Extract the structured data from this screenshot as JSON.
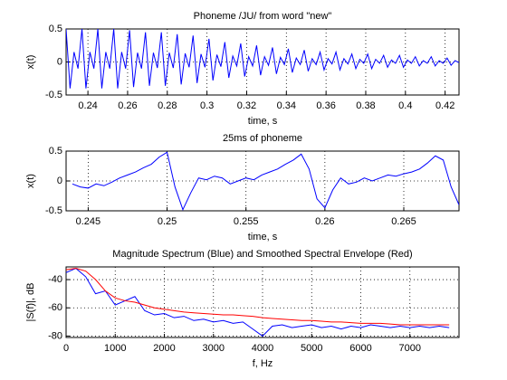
{
  "chart_data": [
    {
      "type": "line",
      "title": "Phoneme /JU/ from word \"new\"",
      "xlabel": "time, s",
      "ylabel": "x(t)",
      "x": [
        0.229,
        0.231,
        0.233,
        0.235,
        0.237,
        0.239,
        0.241,
        0.243,
        0.245,
        0.247,
        0.249,
        0.251,
        0.253,
        0.255,
        0.257,
        0.259,
        0.261,
        0.263,
        0.265,
        0.267,
        0.269,
        0.271,
        0.273,
        0.275,
        0.277,
        0.279,
        0.281,
        0.283,
        0.285,
        0.287,
        0.289,
        0.291,
        0.293,
        0.295,
        0.297,
        0.299,
        0.301,
        0.303,
        0.305,
        0.307,
        0.309,
        0.311,
        0.313,
        0.315,
        0.317,
        0.319,
        0.321,
        0.323,
        0.325,
        0.327,
        0.329,
        0.331,
        0.333,
        0.335,
        0.337,
        0.339,
        0.341,
        0.343,
        0.345,
        0.347,
        0.349,
        0.351,
        0.353,
        0.355,
        0.357,
        0.359,
        0.361,
        0.363,
        0.365,
        0.367,
        0.369,
        0.371,
        0.373,
        0.375,
        0.377,
        0.379,
        0.381,
        0.383,
        0.385,
        0.387,
        0.389,
        0.391,
        0.393,
        0.395,
        0.397,
        0.399,
        0.401,
        0.403,
        0.405,
        0.407,
        0.409,
        0.411,
        0.413,
        0.415,
        0.417,
        0.419,
        0.421,
        0.423,
        0.425,
        0.427
      ],
      "series": [
        {
          "color": "#0000ff",
          "values": [
            0.5,
            -0.4,
            0.15,
            -0.1,
            0.5,
            -0.4,
            0.15,
            -0.1,
            0.5,
            -0.4,
            0.15,
            -0.1,
            0.5,
            -0.4,
            0.15,
            -0.1,
            0.48,
            -0.38,
            0.14,
            -0.1,
            0.45,
            -0.36,
            0.14,
            -0.09,
            0.45,
            -0.36,
            0.14,
            -0.09,
            0.42,
            -0.34,
            0.13,
            -0.08,
            0.4,
            -0.32,
            0.12,
            -0.08,
            0.35,
            -0.28,
            0.11,
            -0.07,
            0.3,
            -0.24,
            0.09,
            -0.06,
            0.28,
            -0.22,
            0.08,
            -0.06,
            0.25,
            -0.2,
            0.08,
            -0.05,
            0.22,
            -0.18,
            0.07,
            -0.04,
            0.2,
            -0.16,
            0.06,
            -0.04,
            0.18,
            -0.14,
            0.05,
            -0.04,
            0.15,
            -0.12,
            0.05,
            -0.03,
            0.15,
            -0.12,
            0.05,
            -0.03,
            0.12,
            -0.1,
            0.04,
            -0.02,
            0.12,
            -0.1,
            0.04,
            -0.02,
            0.1,
            -0.08,
            0.03,
            -0.02,
            0.1,
            -0.08,
            0.03,
            -0.02,
            0.08,
            -0.06,
            0.02,
            -0.02,
            0.08,
            -0.06,
            0.02,
            -0.02,
            0.06,
            -0.05,
            0.02,
            -0.01
          ]
        }
      ],
      "xlim": [
        0.229,
        0.427
      ],
      "xticks": [
        0.24,
        0.26,
        0.28,
        0.3,
        0.32,
        0.34,
        0.36,
        0.38,
        0.4,
        0.42
      ],
      "ylim": [
        -0.5,
        0.5
      ],
      "yticks": [
        -0.5,
        0,
        0.5
      ],
      "grid": true
    },
    {
      "type": "line",
      "title": "25ms of phoneme",
      "xlabel": "time, s",
      "ylabel": "x(t)",
      "x": [
        0.244,
        0.2445,
        0.245,
        0.2455,
        0.246,
        0.2465,
        0.247,
        0.2475,
        0.248,
        0.2485,
        0.249,
        0.2495,
        0.25,
        0.2505,
        0.251,
        0.2515,
        0.252,
        0.2525,
        0.253,
        0.2535,
        0.254,
        0.2545,
        0.255,
        0.2555,
        0.256,
        0.2565,
        0.257,
        0.2575,
        0.258,
        0.2585,
        0.259,
        0.2595,
        0.26,
        0.2605,
        0.261,
        0.2615,
        0.262,
        0.2625,
        0.263,
        0.2635,
        0.264,
        0.2645,
        0.265,
        0.2655,
        0.266,
        0.2665,
        0.267,
        0.2675,
        0.268,
        0.2685
      ],
      "series": [
        {
          "color": "#0000ff",
          "values": [
            -0.05,
            -0.1,
            -0.12,
            -0.05,
            -0.08,
            -0.02,
            0.05,
            0.1,
            0.15,
            0.22,
            0.28,
            0.4,
            0.48,
            -0.1,
            -0.48,
            -0.2,
            0.05,
            0.02,
            0.08,
            0.05,
            -0.05,
            0,
            0.05,
            0.02,
            0.1,
            0.15,
            0.2,
            0.28,
            0.35,
            0.45,
            0.2,
            -0.3,
            -0.45,
            -0.15,
            0.05,
            -0.05,
            -0.02,
            0.05,
            0,
            0.05,
            0.1,
            0.08,
            0.12,
            0.15,
            0.2,
            0.3,
            0.42,
            0.35,
            -0.1,
            -0.4
          ]
        }
      ],
      "xlim": [
        0.2436,
        0.2685
      ],
      "xticks": [
        0.245,
        0.25,
        0.255,
        0.26,
        0.265
      ],
      "ylim": [
        -0.5,
        0.5
      ],
      "yticks": [
        -0.5,
        0,
        0.5
      ],
      "grid": true
    },
    {
      "type": "line",
      "title": "Magnitude Spectrum (Blue) and Smoothed Spectral Envelope (Red)",
      "xlabel": "f, Hz",
      "ylabel": "|S(f)|, dB",
      "x": [
        0,
        200,
        400,
        600,
        800,
        1000,
        1200,
        1400,
        1600,
        1800,
        2000,
        2200,
        2400,
        2600,
        2800,
        3000,
        3200,
        3400,
        3600,
        3800,
        4000,
        4200,
        4400,
        4600,
        4800,
        5000,
        5200,
        5400,
        5600,
        5800,
        6000,
        6200,
        6400,
        6600,
        6800,
        7000,
        7200,
        7400,
        7600,
        7800
      ],
      "series": [
        {
          "color": "#0000ff",
          "values": [
            -35,
            -32,
            -38,
            -50,
            -48,
            -58,
            -55,
            -52,
            -62,
            -65,
            -64,
            -67,
            -66,
            -69,
            -68,
            -70,
            -69,
            -71,
            -70,
            -75,
            -80,
            -73,
            -72,
            -74,
            -73,
            -72,
            -74,
            -73,
            -75,
            -73,
            -74,
            -72,
            -73,
            -74,
            -73,
            -74,
            -73,
            -74,
            -73,
            -74
          ]
        },
        {
          "color": "#ff0000",
          "values": [
            -33,
            -32,
            -34,
            -40,
            -48,
            -53,
            -55,
            -56,
            -58,
            -60,
            -61,
            -62,
            -63,
            -63.5,
            -64,
            -64.5,
            -65,
            -65,
            -65.5,
            -66,
            -67,
            -67.5,
            -68,
            -68.5,
            -69,
            -69,
            -69.5,
            -70,
            -70,
            -70.5,
            -71,
            -71,
            -71,
            -71.5,
            -72,
            -72,
            -72,
            -72,
            -72,
            -72
          ]
        }
      ],
      "xlim": [
        0,
        8000
      ],
      "xticks": [
        0,
        1000,
        2000,
        3000,
        4000,
        5000,
        6000,
        7000
      ],
      "ylim": [
        -81,
        -31
      ],
      "yticks": [
        -80,
        -60,
        -40
      ],
      "grid": true
    }
  ]
}
